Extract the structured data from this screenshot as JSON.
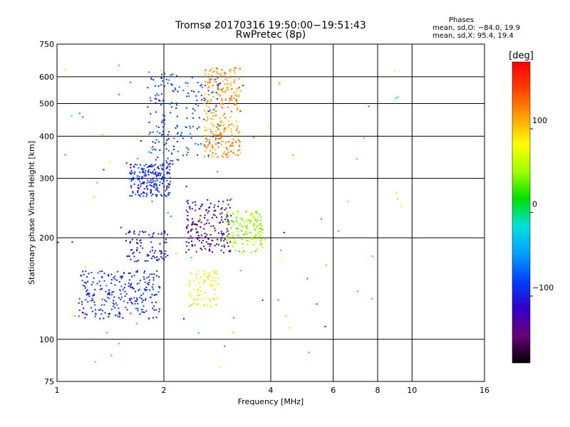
{
  "title_line1": "Tromsø 20170316 19:50:00−19:51:43",
  "title_line2": "RwPretec (8p)",
  "phases_header": "Phases",
  "stats_o": "mean, sd,O: −84.0, 19.9",
  "stats_x": "mean, sd,X:  95.4, 19.4",
  "colorbar": {
    "label": "[deg]",
    "ticks": [
      "100",
      "0",
      "−100"
    ],
    "tick_values": [
      100,
      0,
      -100
    ],
    "range": [
      -180,
      180
    ],
    "colors": [
      "#000000",
      "#6a0078",
      "#3000c8",
      "#0040ff",
      "#00a0ff",
      "#00e0e0",
      "#00e000",
      "#a0ff00",
      "#ffff00",
      "#ffa000",
      "#ff4000",
      "#ff0000"
    ]
  },
  "chart_data": {
    "type": "scatter",
    "xlabel": "Frequency [MHz]",
    "ylabel": "Stationary phase Virtual Height [km]",
    "xscale": "log",
    "yscale": "log",
    "xlim": [
      1,
      16
    ],
    "ylim": [
      75,
      750
    ],
    "xticks": [
      1,
      2,
      4,
      6,
      8,
      10,
      16
    ],
    "xtick_labels": [
      "1",
      "2",
      "4",
      "6",
      "8",
      "10",
      "16"
    ],
    "yticks": [
      75,
      100,
      200,
      300,
      400,
      500,
      600,
      750
    ],
    "ytick_labels": [
      "75",
      "100",
      "200",
      "300",
      "400",
      "500",
      "600",
      "750"
    ],
    "grid": true,
    "color_metric": "phase [deg]",
    "clusters": [
      {
        "name_hint": "o-trace lower",
        "x_range": [
          1.15,
          1.95
        ],
        "y_range": [
          115,
          160
        ],
        "phase": -95,
        "count": 260
      },
      {
        "name_hint": "o-trace lower scatter",
        "x_range": [
          1.55,
          2.05
        ],
        "y_range": [
          170,
          210
        ],
        "phase": -105,
        "count": 90
      },
      {
        "name_hint": "o-trace F",
        "x_range": [
          1.6,
          2.1
        ],
        "y_range": [
          265,
          330
        ],
        "phase": -90,
        "count": 220
      },
      {
        "name_hint": "o-trace F cusp",
        "x_range": [
          1.8,
          2.2
        ],
        "y_range": [
          330,
          620
        ],
        "phase": -85,
        "count": 120
      },
      {
        "name_hint": "o-trace F2 scatter",
        "x_range": [
          2.2,
          2.9
        ],
        "y_range": [
          350,
          600
        ],
        "phase": -85,
        "count": 80
      },
      {
        "name_hint": "x-trace F2",
        "x_range": [
          2.6,
          3.3
        ],
        "y_range": [
          345,
          640
        ],
        "phase": 120,
        "count": 280
      },
      {
        "name_hint": "mid band violet",
        "x_range": [
          2.3,
          3.1
        ],
        "y_range": [
          180,
          260
        ],
        "phase": -135,
        "count": 180
      },
      {
        "name_hint": "mid band x-trace",
        "x_range": [
          3.0,
          3.8
        ],
        "y_range": [
          180,
          240
        ],
        "phase": 50,
        "count": 150
      },
      {
        "name_hint": "lower x-trace",
        "x_range": [
          2.35,
          2.85
        ],
        "y_range": [
          125,
          160
        ],
        "phase": 80,
        "count": 80
      },
      {
        "name_hint": "sparse noise",
        "x_range": [
          1.0,
          9.5
        ],
        "y_range": [
          80,
          650
        ],
        "phase": 0,
        "count": 90
      }
    ]
  }
}
